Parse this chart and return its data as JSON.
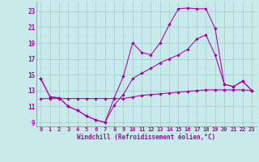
{
  "xlabel": "Windchill (Refroidissement éolien,°C)",
  "background_color": "#c8eaea",
  "grid_color": "#a8d0d0",
  "line_color": "#aa00aa",
  "xlim": [
    -0.5,
    23.5
  ],
  "ylim": [
    8.5,
    24.2
  ],
  "xticks": [
    0,
    1,
    2,
    3,
    4,
    5,
    6,
    7,
    8,
    9,
    10,
    11,
    12,
    13,
    14,
    15,
    16,
    17,
    18,
    19,
    20,
    21,
    22,
    23
  ],
  "yticks": [
    9,
    11,
    13,
    15,
    17,
    19,
    21,
    23
  ],
  "line1_x": [
    0,
    1,
    2,
    3,
    4,
    5,
    6,
    7,
    8,
    9,
    10,
    11,
    12,
    13,
    14,
    15,
    16,
    17,
    18,
    19,
    20,
    21,
    22,
    23
  ],
  "line1_y": [
    14.5,
    12.2,
    12.1,
    11.0,
    10.5,
    9.8,
    9.3,
    9.0,
    12.1,
    14.8,
    19.0,
    17.8,
    17.5,
    19.0,
    21.3,
    23.3,
    23.4,
    23.3,
    23.3,
    20.8,
    13.8,
    13.5,
    14.2,
    13.0
  ],
  "line2_x": [
    0,
    1,
    2,
    3,
    4,
    5,
    6,
    7,
    8,
    9,
    10,
    11,
    12,
    13,
    14,
    15,
    16,
    17,
    18,
    19,
    20,
    21,
    22,
    23
  ],
  "line2_y": [
    14.5,
    12.2,
    12.1,
    11.0,
    10.5,
    9.8,
    9.3,
    9.0,
    11.2,
    12.5,
    14.5,
    15.2,
    15.8,
    16.5,
    17.0,
    17.5,
    18.2,
    19.5,
    20.0,
    17.5,
    13.8,
    13.5,
    14.2,
    13.0
  ],
  "line3_x": [
    0,
    1,
    2,
    3,
    4,
    5,
    6,
    7,
    8,
    9,
    10,
    11,
    12,
    13,
    14,
    15,
    16,
    17,
    18,
    19,
    20,
    21,
    22,
    23
  ],
  "line3_y": [
    12.0,
    12.0,
    12.0,
    12.0,
    12.0,
    12.0,
    12.0,
    12.0,
    12.0,
    12.0,
    12.2,
    12.4,
    12.5,
    12.6,
    12.7,
    12.8,
    12.9,
    13.0,
    13.1,
    13.1,
    13.1,
    13.1,
    13.1,
    13.0
  ]
}
